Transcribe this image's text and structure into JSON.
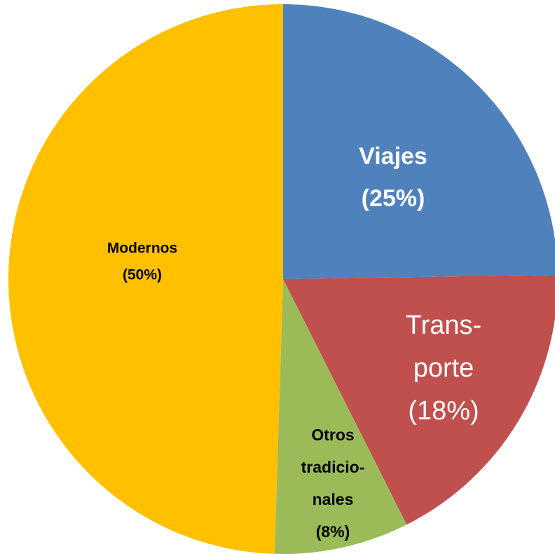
{
  "chart_data": {
    "type": "pie",
    "categories": [
      [
        "Viajes"
      ],
      [
        "Trans-",
        "porte"
      ],
      [
        "Otros",
        "tradicio-",
        "nales"
      ],
      [
        "Modernos"
      ]
    ],
    "values": [
      25,
      18,
      8,
      50
    ],
    "value_labels": [
      "(25%)",
      "(18%)",
      "(8%)",
      "(50%)"
    ],
    "colors": [
      "#4f81bd",
      "#c0504d",
      "#9bbb59",
      "#ffc000"
    ]
  }
}
